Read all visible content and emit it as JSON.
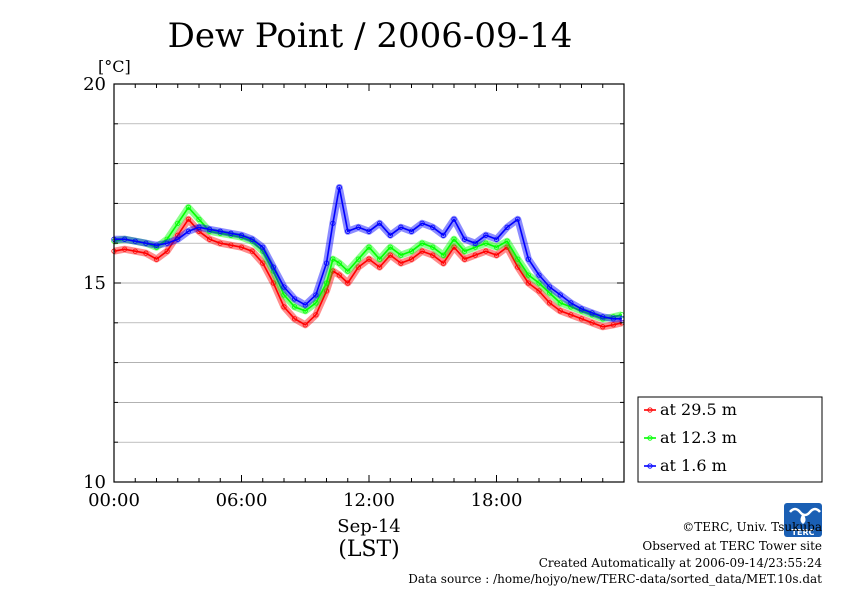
{
  "chart_data": {
    "type": "line",
    "title": "Dew Point / 2006-09-14",
    "ylabel": "[°C]",
    "ylim": [
      10,
      20
    ],
    "yticks": [
      "10",
      "15",
      "20"
    ],
    "xlim": [
      0,
      24
    ],
    "xticks": [
      {
        "value": 0,
        "label": "00:00"
      },
      {
        "value": 6,
        "label": "06:00"
      },
      {
        "value": 12,
        "label": "12:00"
      },
      {
        "value": 18,
        "label": "18:00"
      }
    ],
    "xlabel_date": "Sep-14",
    "xlabel_tz": "(LST)",
    "grid": true,
    "legend_position": "bottom-right-outside",
    "series": [
      {
        "name": "at 29.5 m",
        "color": "#ff0000",
        "x": [
          0,
          0.5,
          1.0,
          1.5,
          2.0,
          2.5,
          3.0,
          3.5,
          4.0,
          4.5,
          5.0,
          5.5,
          6.0,
          6.5,
          7.0,
          7.5,
          8.0,
          8.5,
          9.0,
          9.5,
          10.0,
          10.3,
          10.6,
          11.0,
          11.5,
          12.0,
          12.5,
          13.0,
          13.5,
          14.0,
          14.5,
          15.0,
          15.5,
          16.0,
          16.5,
          17.0,
          17.5,
          18.0,
          18.5,
          19.0,
          19.5,
          20.0,
          20.5,
          21.0,
          21.5,
          22.0,
          22.5,
          23.0,
          23.5,
          23.9
        ],
        "y": [
          15.8,
          15.85,
          15.8,
          15.75,
          15.6,
          15.8,
          16.2,
          16.6,
          16.3,
          16.1,
          16.0,
          15.95,
          15.9,
          15.8,
          15.5,
          15.0,
          14.4,
          14.1,
          13.95,
          14.2,
          14.8,
          15.3,
          15.2,
          15.0,
          15.4,
          15.6,
          15.4,
          15.7,
          15.5,
          15.6,
          15.8,
          15.7,
          15.5,
          15.9,
          15.6,
          15.7,
          15.8,
          15.7,
          15.9,
          15.4,
          15.0,
          14.8,
          14.5,
          14.3,
          14.2,
          14.1,
          14.0,
          13.9,
          13.95,
          14.0
        ]
      },
      {
        "name": "at 12.3 m",
        "color": "#00ff00",
        "x": [
          0,
          0.5,
          1.0,
          1.5,
          2.0,
          2.5,
          3.0,
          3.5,
          4.0,
          4.5,
          5.0,
          5.5,
          6.0,
          6.5,
          7.0,
          7.5,
          8.0,
          8.5,
          9.0,
          9.5,
          10.0,
          10.3,
          10.6,
          11.0,
          11.5,
          12.0,
          12.5,
          13.0,
          13.5,
          14.0,
          14.5,
          15.0,
          15.5,
          16.0,
          16.5,
          17.0,
          17.5,
          18.0,
          18.5,
          19.0,
          19.5,
          20.0,
          20.5,
          21.0,
          21.5,
          22.0,
          22.5,
          23.0,
          23.5,
          23.9
        ],
        "y": [
          16.05,
          16.1,
          16.05,
          16.0,
          15.9,
          16.1,
          16.5,
          16.9,
          16.6,
          16.3,
          16.25,
          16.2,
          16.15,
          16.05,
          15.8,
          15.3,
          14.7,
          14.4,
          14.3,
          14.5,
          15.0,
          15.6,
          15.5,
          15.3,
          15.6,
          15.9,
          15.6,
          15.9,
          15.7,
          15.8,
          16.0,
          15.9,
          15.7,
          16.1,
          15.8,
          15.9,
          16.0,
          15.9,
          16.05,
          15.6,
          15.2,
          15.0,
          14.75,
          14.5,
          14.4,
          14.3,
          14.2,
          14.1,
          14.15,
          14.2
        ]
      },
      {
        "name": "at 1.6 m",
        "color": "#0000ff",
        "x": [
          0,
          0.5,
          1.0,
          1.5,
          2.0,
          2.5,
          3.0,
          3.5,
          4.0,
          4.5,
          5.0,
          5.5,
          6.0,
          6.5,
          7.0,
          7.5,
          8.0,
          8.5,
          9.0,
          9.5,
          10.0,
          10.3,
          10.6,
          11.0,
          11.5,
          12.0,
          12.5,
          13.0,
          13.5,
          14.0,
          14.5,
          15.0,
          15.5,
          16.0,
          16.5,
          17.0,
          17.5,
          18.0,
          18.5,
          19.0,
          19.5,
          20.0,
          20.5,
          21.0,
          21.5,
          22.0,
          22.5,
          23.0,
          23.5,
          23.9
        ],
        "y": [
          16.1,
          16.1,
          16.05,
          16.0,
          15.95,
          16.0,
          16.1,
          16.3,
          16.4,
          16.35,
          16.3,
          16.25,
          16.2,
          16.1,
          15.9,
          15.4,
          14.9,
          14.6,
          14.45,
          14.7,
          15.5,
          16.5,
          17.4,
          16.3,
          16.4,
          16.3,
          16.5,
          16.2,
          16.4,
          16.3,
          16.5,
          16.4,
          16.2,
          16.6,
          16.1,
          16.0,
          16.2,
          16.1,
          16.4,
          16.6,
          15.6,
          15.2,
          14.9,
          14.7,
          14.5,
          14.35,
          14.25,
          14.15,
          14.1,
          14.1
        ]
      }
    ]
  },
  "footer": {
    "logo_text": "TERC",
    "credit": "©TERC, Univ. Tsukuba",
    "site": "Observed at TERC Tower site",
    "created": "Created Automatically at 2006-09-14/23:55:24",
    "source": "Data source : /home/hojyo/new/TERC-data/sorted_data/MET.10s.dat"
  }
}
